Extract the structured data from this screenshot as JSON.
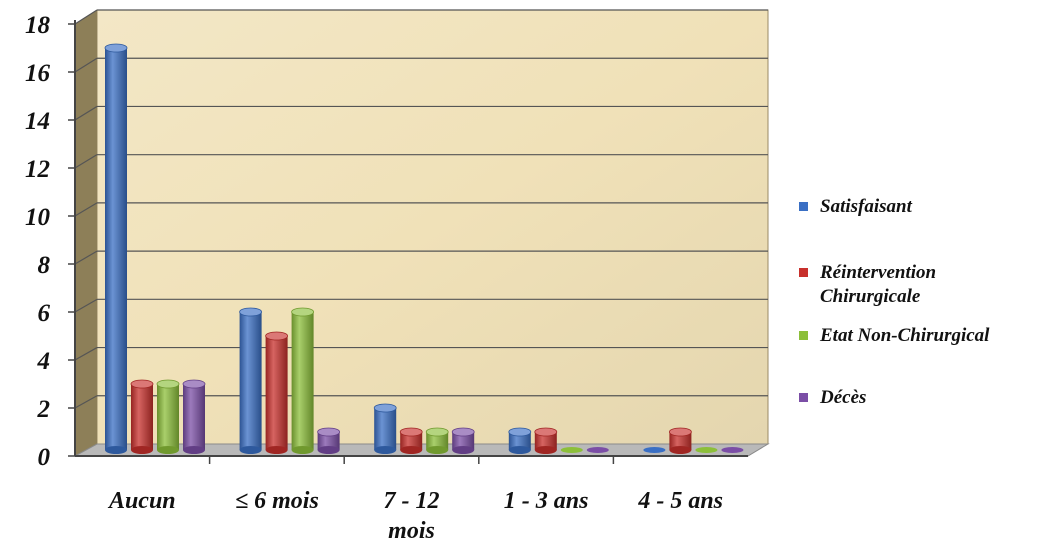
{
  "chart_data": {
    "type": "bar",
    "categories": [
      [
        "Aucun"
      ],
      [
        "≤ 6 mois"
      ],
      [
        "7 - 12",
        "mois"
      ],
      [
        "1 - 3 ans"
      ],
      [
        "4 - 5 ans"
      ]
    ],
    "series": [
      {
        "name": "Satisfaisant",
        "values": [
          17,
          6,
          2,
          1,
          0
        ],
        "color": "#3a6fc4"
      },
      {
        "name": [
          "Réintervention",
          "Chirurgicale"
        ],
        "values": [
          3,
          5,
          1,
          1,
          1
        ],
        "color": "#c8302c"
      },
      {
        "name": "Etat Non-Chirurgical",
        "values": [
          3,
          6,
          1,
          0,
          0
        ],
        "color": "#8cbf3a"
      },
      {
        "name": "Décès",
        "values": [
          3,
          1,
          1,
          0,
          0
        ],
        "color": "#7b4ea6"
      }
    ],
    "y_ticks": [
      "0",
      "2",
      "4",
      "6",
      "8",
      "10",
      "12",
      "14",
      "16",
      "18"
    ],
    "ylim": [
      0,
      18
    ],
    "grid": true,
    "legend_position": "right",
    "background": "#f0e1b8"
  }
}
